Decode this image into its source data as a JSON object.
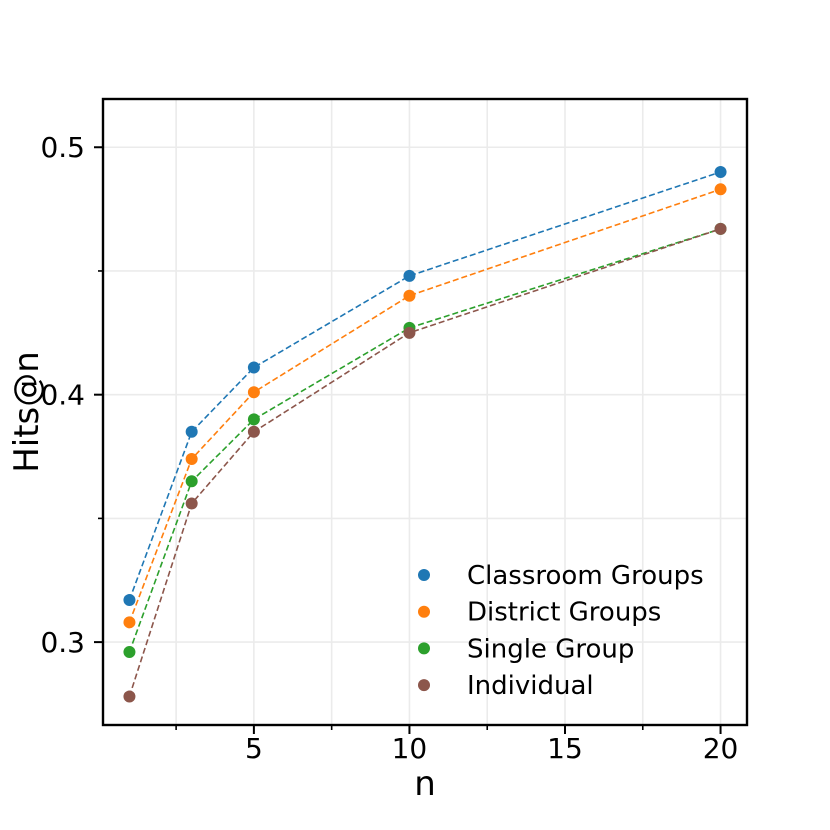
{
  "chart_data": {
    "type": "line",
    "xlabel": "n",
    "ylabel": "Hits@n",
    "x": [
      1,
      3,
      5,
      10,
      20
    ],
    "xlim": [
      0.15,
      20.85
    ],
    "ylim": [
      0.2665,
      0.5195
    ],
    "xticks": [
      5,
      10,
      15,
      20
    ],
    "xticks_minor": [
      2.5,
      7.5,
      12.5,
      17.5
    ],
    "yticks": [
      0.3,
      0.4,
      0.5
    ],
    "yticks_minor": [
      0.35,
      0.45
    ],
    "grid": true,
    "legend_position": "lower-right",
    "series": [
      {
        "name": "Classroom Groups",
        "color": "#1f77b4",
        "values": [
          0.317,
          0.385,
          0.411,
          0.448,
          0.49
        ]
      },
      {
        "name": "District Groups",
        "color": "#ff7f0e",
        "values": [
          0.308,
          0.374,
          0.401,
          0.44,
          0.483
        ]
      },
      {
        "name": "Single Group",
        "color": "#2ca02c",
        "values": [
          0.296,
          0.365,
          0.39,
          0.427,
          0.467
        ]
      },
      {
        "name": "Individual",
        "color": "#8c564b",
        "values": [
          0.278,
          0.356,
          0.385,
          0.425,
          0.467
        ]
      }
    ]
  }
}
